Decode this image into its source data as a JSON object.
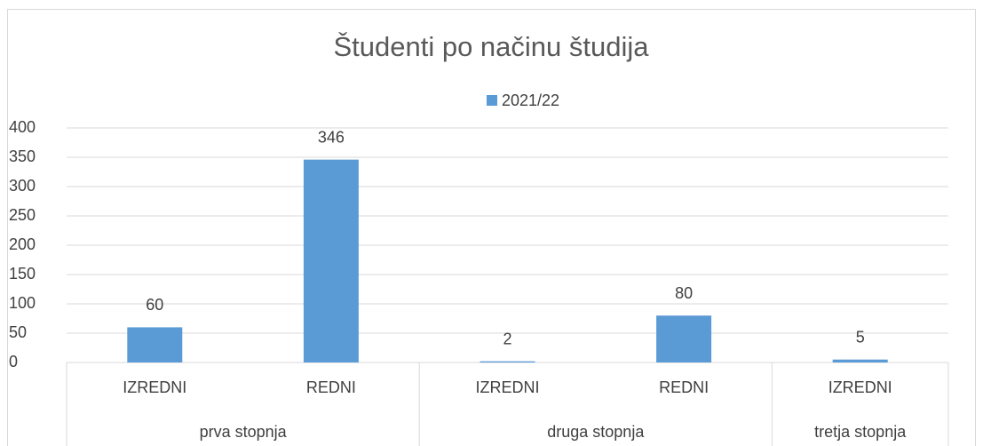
{
  "chart_data": {
    "type": "bar",
    "title": "Študenti po načinu študija",
    "series": [
      {
        "name": "2021/22",
        "color": "#5b9bd5"
      }
    ],
    "groups": [
      {
        "name": "prva stopnja",
        "categories": [
          "IZREDNI",
          "REDNI"
        ],
        "values": [
          60,
          346
        ]
      },
      {
        "name": "druga stopnja",
        "categories": [
          "IZREDNI",
          "REDNI"
        ],
        "values": [
          2,
          80
        ]
      },
      {
        "name": "tretja stopnja",
        "categories": [
          "IZREDNI"
        ],
        "values": [
          5
        ]
      }
    ],
    "ylim": [
      0,
      400
    ],
    "yticks": [
      0,
      50,
      100,
      150,
      200,
      250,
      300,
      350,
      400
    ],
    "grid": true,
    "legend": "top"
  }
}
